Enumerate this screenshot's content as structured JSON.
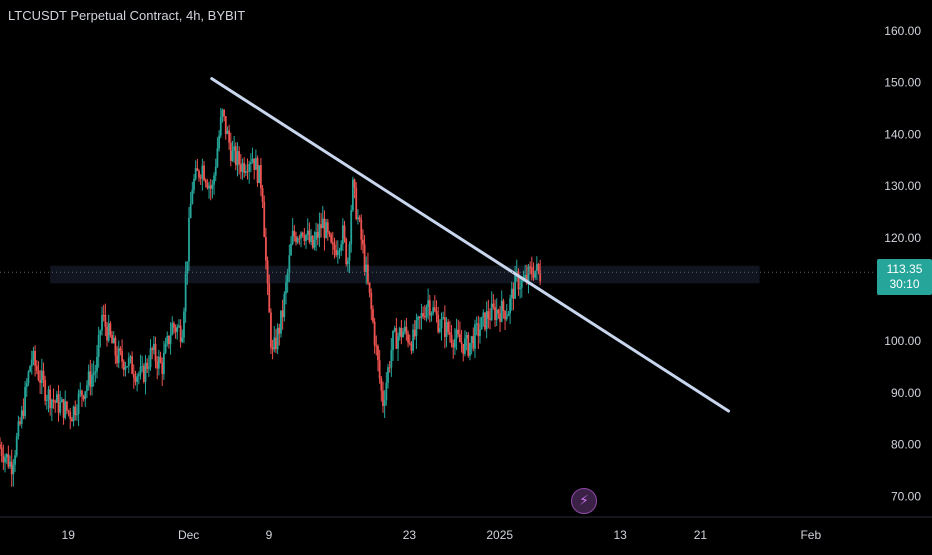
{
  "chart_data": {
    "type": "candlestick",
    "title": "LTCUSDT Perpetual Contract, 4h, BYBIT",
    "y_ticks": [
      "160.00",
      "150.00",
      "140.00",
      "130.00",
      "120.00",
      "100.00",
      "90.00",
      "80.00",
      "70.00"
    ],
    "x_ticks": [
      {
        "label": "19",
        "day": -12
      },
      {
        "label": "Dec",
        "day": 0
      },
      {
        "label": "9",
        "day": 8
      },
      {
        "label": "23",
        "day": 22
      },
      {
        "label": "2025",
        "day": 31
      },
      {
        "label": "13",
        "day": 43
      },
      {
        "label": "21",
        "day": 51
      },
      {
        "label": "Feb",
        "day": 62
      }
    ],
    "ylim": [
      66,
      166
    ],
    "xlim_days": [
      -18.8,
      68.2
    ],
    "current_price": "113.35",
    "countdown": "30:10",
    "trendline": {
      "start": {
        "day": 2.3,
        "price": 150.8
      },
      "end": {
        "day": 53.8,
        "price": 86.5
      }
    },
    "zone": {
      "day_start": -13.8,
      "day_end": 56.9,
      "price_low": 111.2,
      "price_high": 114.6
    },
    "price_anchors": [
      {
        "day": -18.8,
        "price": 80
      },
      {
        "day": -17.5,
        "price": 76
      },
      {
        "day": -16.5,
        "price": 85
      },
      {
        "day": -15.5,
        "price": 97
      },
      {
        "day": -14,
        "price": 90
      },
      {
        "day": -13,
        "price": 88
      },
      {
        "day": -11.5,
        "price": 86
      },
      {
        "day": -10.5,
        "price": 90
      },
      {
        "day": -9,
        "price": 95
      },
      {
        "day": -8.5,
        "price": 105
      },
      {
        "day": -7,
        "price": 97
      },
      {
        "day": -6,
        "price": 96
      },
      {
        "day": -4.5,
        "price": 93
      },
      {
        "day": -3.5,
        "price": 98
      },
      {
        "day": -2.5,
        "price": 95
      },
      {
        "day": -1.5,
        "price": 103
      },
      {
        "day": -0.5,
        "price": 102
      },
      {
        "day": 0.5,
        "price": 130
      },
      {
        "day": 1.5,
        "price": 134
      },
      {
        "day": 2.5,
        "price": 129
      },
      {
        "day": 3,
        "price": 137
      },
      {
        "day": 3.5,
        "price": 144
      },
      {
        "day": 4.5,
        "price": 136
      },
      {
        "day": 5.5,
        "price": 134
      },
      {
        "day": 6.5,
        "price": 136
      },
      {
        "day": 7.5,
        "price": 130
      },
      {
        "day": 8,
        "price": 110
      },
      {
        "day": 8.5,
        "price": 97
      },
      {
        "day": 9.5,
        "price": 105
      },
      {
        "day": 10.5,
        "price": 120
      },
      {
        "day": 11.5,
        "price": 122
      },
      {
        "day": 12.5,
        "price": 118
      },
      {
        "day": 13.5,
        "price": 123
      },
      {
        "day": 14.5,
        "price": 117
      },
      {
        "day": 15.5,
        "price": 121
      },
      {
        "day": 16,
        "price": 115
      },
      {
        "day": 16.5,
        "price": 130
      },
      {
        "day": 17.5,
        "price": 118
      },
      {
        "day": 18.5,
        "price": 104
      },
      {
        "day": 19.5,
        "price": 88
      },
      {
        "day": 20.5,
        "price": 100
      },
      {
        "day": 21.5,
        "price": 102
      },
      {
        "day": 22.5,
        "price": 100
      },
      {
        "day": 24,
        "price": 108
      },
      {
        "day": 25,
        "price": 104
      },
      {
        "day": 26,
        "price": 102
      },
      {
        "day": 27,
        "price": 100
      },
      {
        "day": 28,
        "price": 99
      },
      {
        "day": 29,
        "price": 102
      },
      {
        "day": 30,
        "price": 105
      },
      {
        "day": 31,
        "price": 106
      },
      {
        "day": 32,
        "price": 106
      },
      {
        "day": 32.8,
        "price": 112
      },
      {
        "day": 33.5,
        "price": 111
      },
      {
        "day": 34.5,
        "price": 114
      },
      {
        "day": 35.2,
        "price": 113
      }
    ]
  },
  "ui": {
    "countdown_label": "30:10",
    "alert_icon": "lightning-bolt-icon",
    "colors": {
      "up": "#26a69a",
      "down": "#ef5350",
      "trendline": "#c8d6ee",
      "zone": "#131722",
      "crosshair": "#5d606b",
      "axis_text": "#d1d4dc"
    }
  }
}
